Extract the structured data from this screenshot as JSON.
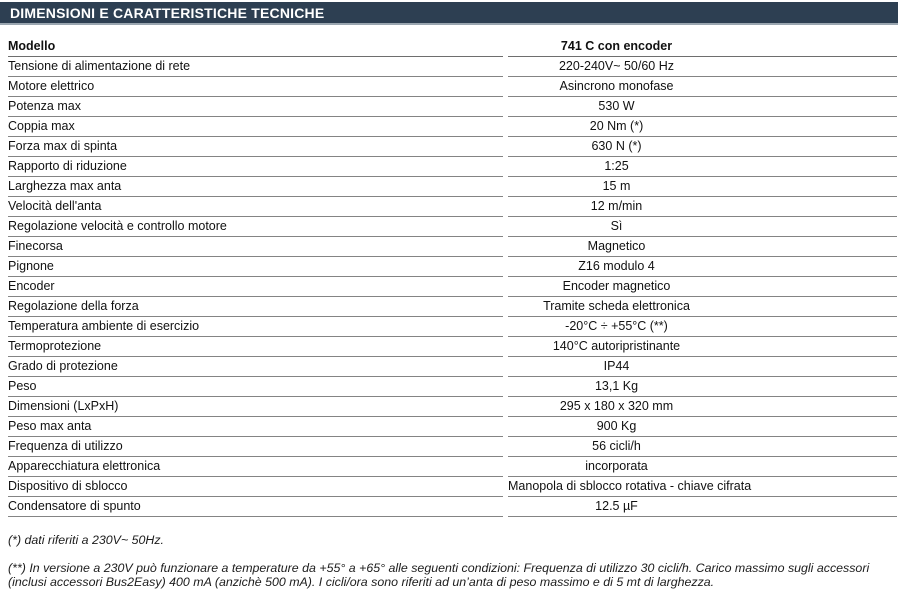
{
  "header": {
    "title": "DIMENSIONI E CARATTERISTICHE TECNICHE"
  },
  "table": {
    "model_label": "Modello",
    "model_value": "741 C con encoder",
    "rows": [
      {
        "label": "Tensione di alimentazione di rete",
        "value": "220-240V~ 50/60 Hz"
      },
      {
        "label": "Motore elettrico",
        "value": "Asincrono monofase"
      },
      {
        "label": "Potenza max",
        "value": "530 W"
      },
      {
        "label": "Coppia max",
        "value": "20 Nm (*)"
      },
      {
        "label": "Forza max di spinta",
        "value": "630 N (*)"
      },
      {
        "label": "Rapporto di riduzione",
        "value": "1:25"
      },
      {
        "label": "Larghezza max anta",
        "value": "15 m"
      },
      {
        "label": "Velocità dell'anta",
        "value": "12 m/min"
      },
      {
        "label": "Regolazione velocità e controllo motore",
        "value": "Sì"
      },
      {
        "label": "Finecorsa",
        "value": "Magnetico"
      },
      {
        "label": "Pignone",
        "value": "Z16 modulo 4"
      },
      {
        "label": "Encoder",
        "value": "Encoder magnetico"
      },
      {
        "label": "Regolazione della forza",
        "value": "Tramite scheda elettronica"
      },
      {
        "label": "Temperatura ambiente di esercizio",
        "value": "-20°C ÷ +55°C (**)"
      },
      {
        "label": "Termoprotezione",
        "value": "140°C autoripristinante"
      },
      {
        "label": "Grado di protezione",
        "value": "IP44"
      },
      {
        "label": "Peso",
        "value": "13,1 Kg"
      },
      {
        "label": "Dimensioni (LxPxH)",
        "value": "295 x 180 x 320 mm"
      },
      {
        "label": "Peso max anta",
        "value": "900 Kg"
      },
      {
        "label": "Frequenza di utilizzo",
        "value": "56 cicli/h"
      },
      {
        "label": "Apparecchiatura elettronica",
        "value": "incorporata"
      },
      {
        "label": "Dispositivo di sblocco",
        "value": "Manopola di sblocco rotativa - chiave cifrata"
      },
      {
        "label": "Condensatore di spunto",
        "value": "12.5 µF"
      }
    ]
  },
  "footnotes": {
    "note1": "(*) dati riferiti a 230V~ 50Hz.",
    "note2": "(**) In versione a 230V può funzionare a temperature da +55° a +65° alle seguenti condizioni:  Frequenza di utilizzo 30 cicli/h. Carico massimo sugli accessori (inclusi accessori Bus2Easy) 400 mA (anzichè 500 mA). I cicli/ora sono riferiti ad un’anta di peso massimo e di 5 mt di larghezza."
  },
  "colors": {
    "header_bg": "#2d3f52",
    "row_line": "#848484",
    "text": "#111111"
  }
}
